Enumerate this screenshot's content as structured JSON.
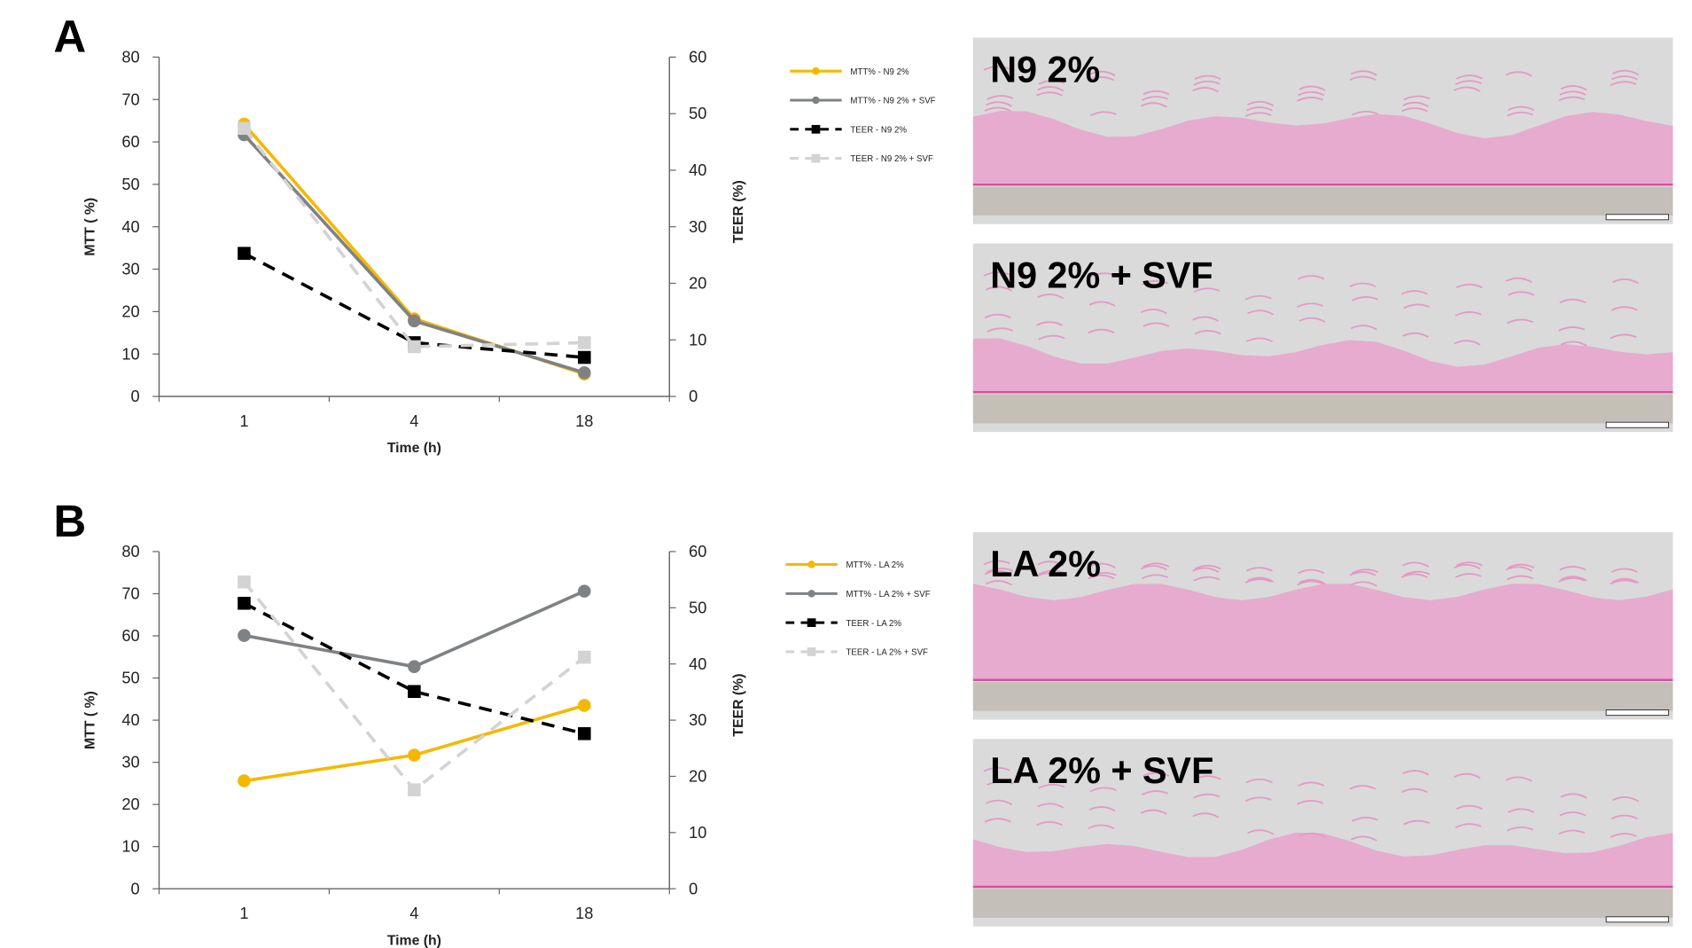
{
  "chart_data": [
    {
      "type": "line",
      "panel": "A",
      "categories": [
        "1",
        "4",
        "18"
      ],
      "xlabel": "Time (h)",
      "ylabel": "MTT ( %)",
      "y2label": "TEER (%)",
      "ylim": [
        0,
        80
      ],
      "yticks": [
        0,
        10,
        20,
        30,
        40,
        50,
        60,
        70,
        80
      ],
      "y2lim": [
        0,
        60
      ],
      "y2ticks": [
        0,
        10,
        20,
        30,
        40,
        50,
        60
      ],
      "series": [
        {
          "name": "MTT% - N9 2%",
          "color": "#f5b800",
          "style": "solid",
          "marker": "circle",
          "axis": "y",
          "values": [
            64.2,
            18.3,
            5.3
          ]
        },
        {
          "name": "MTT% - N9 2% + SVF",
          "color": "#7f8285",
          "style": "solid",
          "marker": "circle",
          "axis": "y",
          "values": [
            61.7,
            17.8,
            5.6
          ]
        },
        {
          "name": "TEER - N9 2%",
          "color": "#000000",
          "style": "dashed",
          "marker": "square",
          "axis": "y2",
          "values": [
            25.3,
            9.5,
            6.9
          ]
        },
        {
          "name": "TEER -  N9 2% + SVF",
          "color": "#d3d3d3",
          "style": "dashed",
          "marker": "square",
          "axis": "y2",
          "values": [
            47.4,
            8.8,
            9.5
          ]
        }
      ]
    },
    {
      "type": "line",
      "panel": "B",
      "categories": [
        "1",
        "4",
        "18"
      ],
      "xlabel": "Time (h)",
      "ylabel": "MTT ( %)",
      "y2label": "TEER (%)",
      "ylim": [
        0,
        80
      ],
      "yticks": [
        0,
        10,
        20,
        30,
        40,
        50,
        60,
        70,
        80
      ],
      "y2lim": [
        0,
        60
      ],
      "y2ticks": [
        0,
        10,
        20,
        30,
        40,
        50,
        60
      ],
      "series": [
        {
          "name": "MTT% - LA 2%",
          "color": "#f5b800",
          "style": "solid",
          "marker": "circle",
          "axis": "y",
          "values": [
            25.6,
            31.7,
            43.5
          ]
        },
        {
          "name": "MTT% - LA 2% + SVF",
          "color": "#7f8285",
          "style": "solid",
          "marker": "circle",
          "axis": "y",
          "values": [
            60.1,
            52.7,
            70.6
          ]
        },
        {
          "name": "TEER - LA 2%",
          "color": "#000000",
          "style": "dashed",
          "marker": "square",
          "axis": "y2",
          "values": [
            50.8,
            35.1,
            27.6
          ]
        },
        {
          "name": "TEER -  LA 2% + SVF",
          "color": "#d3d3d3",
          "style": "dashed",
          "marker": "square",
          "axis": "y2",
          "values": [
            54.6,
            17.6,
            41.2
          ]
        }
      ]
    }
  ],
  "micrographs": [
    {
      "label": "N9 2%"
    },
    {
      "label": "N9 2% + SVF"
    },
    {
      "label": "LA 2%"
    },
    {
      "label": "LA 2% + SVF"
    }
  ]
}
